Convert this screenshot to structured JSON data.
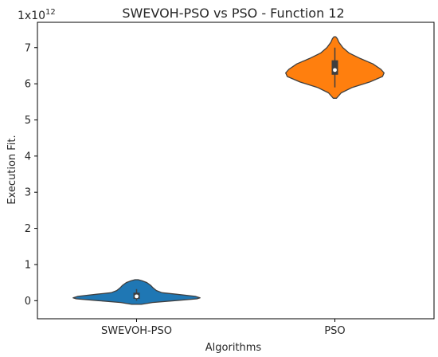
{
  "chart_data": {
    "type": "violin",
    "title": "SWEVOH-PSO vs PSO - Function 12",
    "xlabel": "Algorithms",
    "ylabel": "Execution Fit.",
    "y_multiplier": {
      "base": "1x10",
      "exponent": "12"
    },
    "ylim": [
      -0.5,
      7.7
    ],
    "yticks": [
      0,
      1,
      2,
      3,
      4,
      5,
      6,
      7
    ],
    "grid": false,
    "categories": [
      "SWEVOH-PSO",
      "PSO"
    ],
    "series": [
      {
        "name": "SWEVOH-PSO",
        "color": "#1f77b4",
        "box": {
          "q1": 0.05,
          "median": 0.12,
          "q3": 0.22,
          "whisker_low": 0.0,
          "whisker_high": 0.32
        },
        "profile": [
          [
            -0.1,
            0.06
          ],
          [
            -0.05,
            0.2
          ],
          [
            0.0,
            0.48
          ],
          [
            0.05,
            0.76
          ],
          [
            0.08,
            0.8
          ],
          [
            0.12,
            0.74
          ],
          [
            0.18,
            0.5
          ],
          [
            0.22,
            0.32
          ],
          [
            0.28,
            0.25
          ],
          [
            0.35,
            0.21
          ],
          [
            0.42,
            0.18
          ],
          [
            0.5,
            0.13
          ],
          [
            0.55,
            0.07
          ],
          [
            0.58,
            0.02
          ]
        ]
      },
      {
        "name": "PSO",
        "color": "#ff7f0e",
        "box": {
          "q1": 6.25,
          "median": 6.38,
          "q3": 6.65,
          "whisker_low": 5.9,
          "whisker_high": 7.0
        },
        "profile": [
          [
            5.6,
            0.02
          ],
          [
            5.75,
            0.08
          ],
          [
            5.9,
            0.22
          ],
          [
            6.05,
            0.44
          ],
          [
            6.2,
            0.6
          ],
          [
            6.3,
            0.62
          ],
          [
            6.4,
            0.58
          ],
          [
            6.55,
            0.48
          ],
          [
            6.7,
            0.32
          ],
          [
            6.85,
            0.18
          ],
          [
            7.0,
            0.1
          ],
          [
            7.15,
            0.05
          ],
          [
            7.25,
            0.03
          ],
          [
            7.3,
            0.01
          ]
        ]
      }
    ]
  }
}
